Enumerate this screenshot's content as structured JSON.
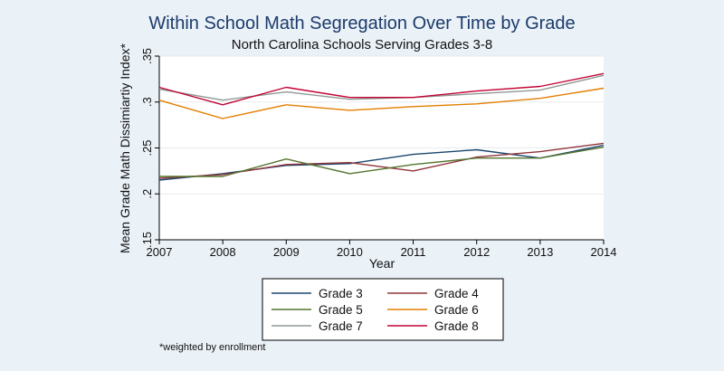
{
  "chart_data": {
    "type": "line",
    "title": "Within School Math Segregation Over Time by Grade",
    "subtitle": "North Carolina Schools Serving Grades 3-8",
    "xlabel": "Year",
    "ylabel": "Mean Grade Math Dissimiartiy Index*",
    "x": [
      2007,
      2008,
      2009,
      2010,
      2011,
      2012,
      2013,
      2014
    ],
    "x_ticks": [
      "2007",
      "2008",
      "2009",
      "2010",
      "2011",
      "2012",
      "2013",
      "2014"
    ],
    "y_ticks": [
      ".15",
      ".2",
      ".25",
      ".3",
      ".35"
    ],
    "y_tick_values": [
      0.15,
      0.2,
      0.25,
      0.3,
      0.35
    ],
    "ylim": [
      0.15,
      0.35
    ],
    "grid": true,
    "legend_position": "bottom",
    "series": [
      {
        "name": "Grade 3",
        "color": "#1a476f",
        "values": [
          0.215,
          0.222,
          0.231,
          0.233,
          0.243,
          0.248,
          0.239,
          0.253
        ]
      },
      {
        "name": "Grade 4",
        "color": "#90353b",
        "values": [
          0.217,
          0.221,
          0.232,
          0.234,
          0.225,
          0.24,
          0.246,
          0.255
        ]
      },
      {
        "name": "Grade 5",
        "color": "#55752f",
        "values": [
          0.219,
          0.219,
          0.238,
          0.222,
          0.232,
          0.239,
          0.239,
          0.251
        ]
      },
      {
        "name": "Grade 6",
        "color": "#e37e00",
        "values": [
          0.302,
          0.282,
          0.297,
          0.291,
          0.295,
          0.298,
          0.304,
          0.315
        ]
      },
      {
        "name": "Grade 7",
        "color": "#8e9a96",
        "values": [
          0.314,
          0.302,
          0.311,
          0.303,
          0.305,
          0.309,
          0.313,
          0.329
        ]
      },
      {
        "name": "Grade 8",
        "color": "#c10534",
        "values": [
          0.316,
          0.297,
          0.316,
          0.305,
          0.305,
          0.312,
          0.317,
          0.331
        ]
      }
    ],
    "footnote": "*weighted by enrollment"
  }
}
